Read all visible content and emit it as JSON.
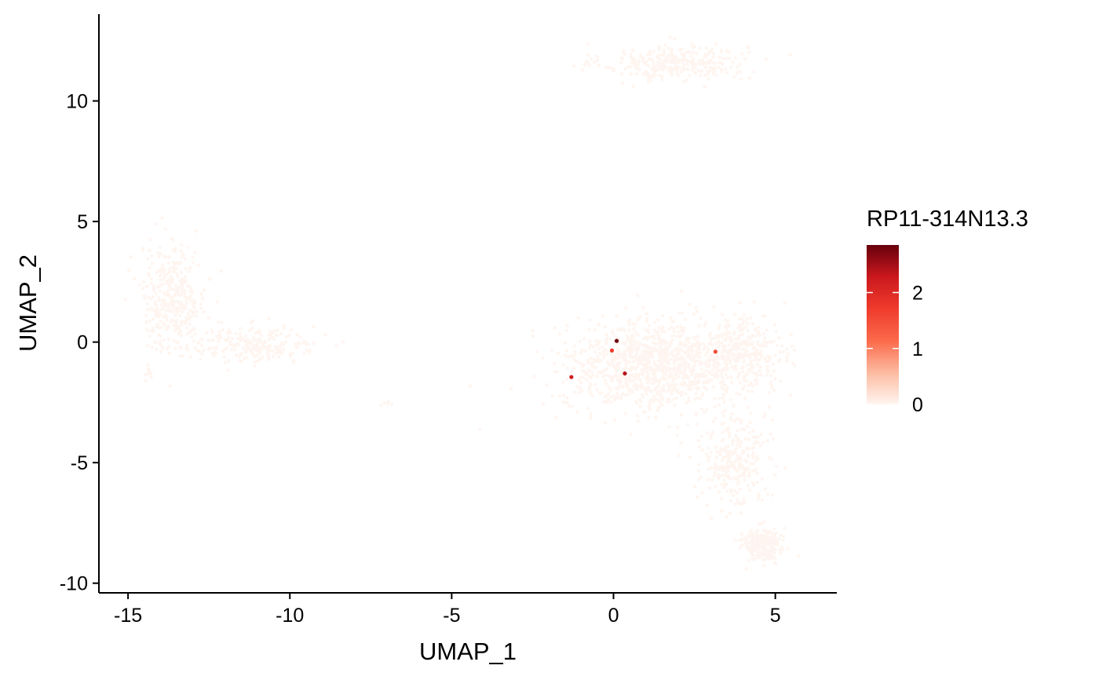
{
  "chart_data": {
    "type": "scatter",
    "title": "",
    "xlabel": "UMAP_1",
    "ylabel": "UMAP_2",
    "xlim": [
      -15.9,
      6.9
    ],
    "ylim": [
      -10.4,
      13.6
    ],
    "x_ticks": [
      -15,
      -10,
      -5,
      0,
      5
    ],
    "x_tick_labels": [
      "-15",
      "-10",
      "-5",
      "0",
      "5"
    ],
    "y_ticks": [
      -10,
      -5,
      0,
      5,
      10
    ],
    "y_tick_labels": [
      "-10",
      "-5",
      "0",
      "5",
      "10"
    ],
    "grid": false,
    "legend": {
      "title": "RP11-314N13.3",
      "placement": "right",
      "min": 0,
      "max": 2.85,
      "ticks": [
        0,
        1,
        2
      ],
      "tick_labels": [
        "0",
        "1",
        "2"
      ],
      "colors": [
        "#fff5f0",
        "#fcbba1",
        "#fb6a4a",
        "#ef3b2c",
        "#cb181d",
        "#67000d"
      ]
    },
    "clusters": [
      {
        "cx": 1.9,
        "cy": 11.6,
        "sx": 1.3,
        "sy": 0.45,
        "n": 330,
        "value": 0
      },
      {
        "cx": -13.6,
        "cy": 1.8,
        "sx": 0.6,
        "sy": 1.3,
        "n": 380,
        "value": 0
      },
      {
        "cx": -11.0,
        "cy": -0.1,
        "sx": 1.1,
        "sy": 0.45,
        "n": 230,
        "value": 0
      },
      {
        "cx": -14.4,
        "cy": -1.4,
        "sx": 0.1,
        "sy": 0.2,
        "n": 10,
        "value": 0
      },
      {
        "cx": -7.0,
        "cy": -2.55,
        "sx": 0.12,
        "sy": 0.08,
        "n": 5,
        "value": 0
      },
      {
        "cx": 1.2,
        "cy": -1.0,
        "sx": 1.6,
        "sy": 1.1,
        "n": 1100,
        "value": 0
      },
      {
        "cx": 4.0,
        "cy": -0.5,
        "sx": 0.8,
        "sy": 0.9,
        "n": 320,
        "value": 0
      },
      {
        "cx": 3.7,
        "cy": -4.8,
        "sx": 0.6,
        "sy": 1.2,
        "n": 300,
        "value": 0
      },
      {
        "cx": 4.6,
        "cy": -8.4,
        "sx": 0.35,
        "sy": 0.4,
        "n": 260,
        "value": 0
      }
    ],
    "expressed_points": [
      {
        "x": 0.1,
        "y": 0.05,
        "value": 2.8
      },
      {
        "x": -0.05,
        "y": -0.35,
        "value": 1.7
      },
      {
        "x": 0.35,
        "y": -1.3,
        "value": 2.4
      },
      {
        "x": -1.3,
        "y": -1.45,
        "value": 2.2
      },
      {
        "x": 3.15,
        "y": -0.4,
        "value": 1.5
      }
    ]
  }
}
